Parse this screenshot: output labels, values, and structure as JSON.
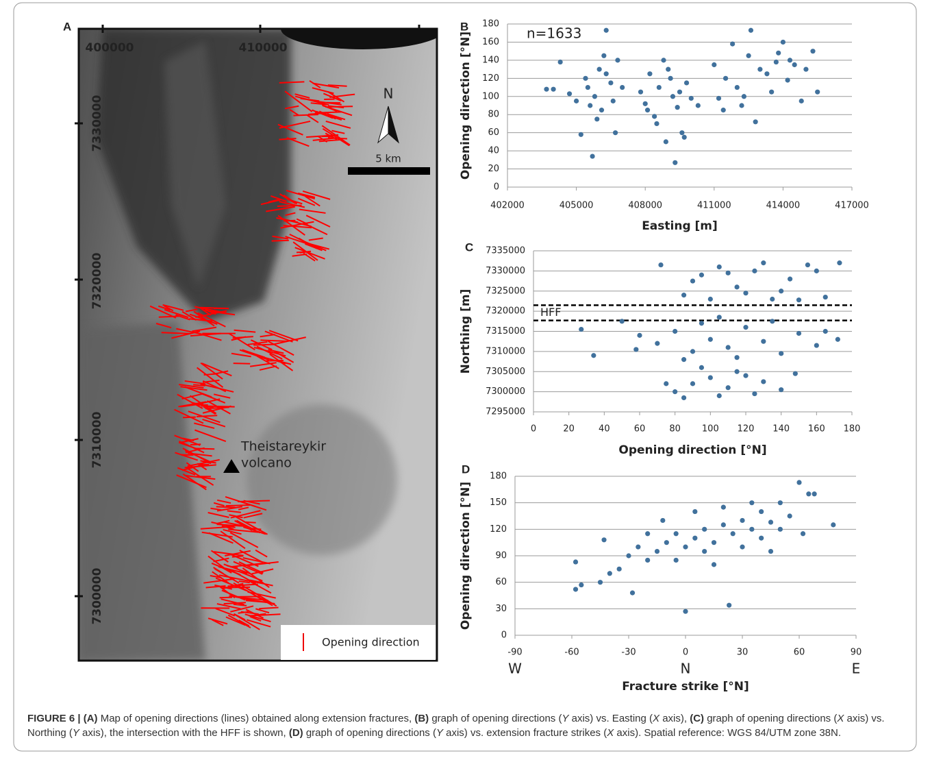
{
  "map": {
    "label": "A",
    "easting_labels": [
      400000,
      410000
    ],
    "northing_labels": [
      7330000,
      7320000,
      7310000,
      7300000
    ],
    "north": "N",
    "scale": "5 km",
    "volcano": [
      "Theistareykir",
      "volcano"
    ],
    "legend": "Opening direction"
  },
  "chart_data": [
    {
      "type": "scatter",
      "panel": "B",
      "annotation": "n=1633",
      "x_label": "Easting [m]",
      "y_label": "Opening direction [°N]",
      "xlim": [
        402000,
        417000
      ],
      "xticks": [
        402000,
        405000,
        408000,
        411000,
        414000,
        417000
      ],
      "ylim": [
        0,
        180
      ],
      "yticks": [
        0,
        20,
        40,
        60,
        80,
        100,
        120,
        140,
        160,
        180
      ],
      "grid": true,
      "color": "#41719c",
      "x": [
        403700,
        404000,
        404300,
        404700,
        405000,
        405200,
        405400,
        405500,
        405700,
        405800,
        406000,
        406100,
        406300,
        406300,
        406500,
        406600,
        406800,
        407000,
        406200,
        405900,
        406700,
        405600,
        407800,
        408000,
        408200,
        408400,
        408600,
        408800,
        409000,
        409200,
        409400,
        409600,
        409800,
        410000,
        408500,
        409300,
        408900,
        409100,
        408100,
        409500,
        411000,
        411200,
        411500,
        411800,
        412000,
        412200,
        412500,
        412600,
        412800,
        413000,
        413300,
        413500,
        413800,
        414000,
        414200,
        414500,
        414800,
        415000,
        415300,
        415500,
        412300,
        413700,
        411400,
        414300,
        410300,
        409700
      ],
      "values": [
        108,
        108,
        138,
        103,
        95,
        58,
        120,
        110,
        34,
        100,
        130,
        85,
        173,
        125,
        115,
        95,
        140,
        110,
        145,
        75,
        60,
        90,
        105,
        92,
        125,
        78,
        110,
        140,
        130,
        100,
        88,
        60,
        115,
        98,
        70,
        27,
        50,
        120,
        85,
        105,
        135,
        98,
        120,
        158,
        110,
        90,
        145,
        173,
        72,
        130,
        125,
        105,
        148,
        160,
        118,
        135,
        95,
        130,
        150,
        105,
        100,
        138,
        85,
        140,
        90,
        55
      ]
    },
    {
      "type": "scatter",
      "panel": "C",
      "x_label": "Opening direction [°N]",
      "y_label": "Northing [m]",
      "xlim": [
        0,
        180
      ],
      "xticks": [
        0,
        20,
        40,
        60,
        80,
        100,
        120,
        140,
        160,
        180
      ],
      "ylim": [
        7295000,
        7335000
      ],
      "yticks": [
        7295000,
        7300000,
        7305000,
        7310000,
        7315000,
        7320000,
        7325000,
        7330000,
        7335000
      ],
      "grid": true,
      "color": "#41719c",
      "hlines": [
        7321500,
        7317700
      ],
      "hline_label": "HFF",
      "x": [
        27,
        34,
        72,
        173,
        172,
        80,
        90,
        100,
        110,
        120,
        130,
        140,
        85,
        105,
        115,
        95,
        125,
        148,
        75,
        50,
        60,
        70,
        80,
        90,
        100,
        110,
        120,
        130,
        140,
        150,
        160,
        165,
        95,
        105,
        115,
        85,
        58,
        135,
        85,
        95,
        105,
        115,
        125,
        135,
        145,
        155,
        165,
        100,
        120,
        130,
        140,
        110,
        150,
        160,
        90
      ],
      "values": [
        7315500,
        7309000,
        7331500,
        7332000,
        7313000,
        7300000,
        7302000,
        7303500,
        7301000,
        7304000,
        7302500,
        7300500,
        7298500,
        7299000,
        7305000,
        7306000,
        7299500,
        7304500,
        7302000,
        7317500,
        7314000,
        7312000,
        7315000,
        7310000,
        7313000,
        7311000,
        7316000,
        7312500,
        7309500,
        7314500,
        7311500,
        7315000,
        7317000,
        7318500,
        7308500,
        7308000,
        7310500,
        7317500,
        7324000,
        7329000,
        7331000,
        7326000,
        7330000,
        7323000,
        7328000,
        7331500,
        7323500,
        7323000,
        7324500,
        7332000,
        7325000,
        7329500,
        7322800,
        7330000,
        7327500
      ]
    },
    {
      "type": "scatter",
      "panel": "D",
      "x_label": "Fracture strike [°N]",
      "y_label": "Opening direction [°N]",
      "xlim": [
        -90,
        90
      ],
      "xticks": [
        -90,
        -60,
        -30,
        0,
        30,
        60,
        90
      ],
      "ylim": [
        0,
        180
      ],
      "yticks": [
        0,
        30,
        60,
        90,
        120,
        150,
        180
      ],
      "grid": true,
      "color": "#41719c",
      "direction_labels": [
        {
          "value": -90,
          "label": "W"
        },
        {
          "value": 0,
          "label": "N"
        },
        {
          "value": 90,
          "label": "E"
        }
      ],
      "x": [
        -58,
        -58,
        -55,
        -43,
        0,
        23,
        78,
        60,
        -45,
        -40,
        -35,
        -30,
        -28,
        -25,
        -20,
        -15,
        -10,
        -5,
        0,
        5,
        10,
        15,
        20,
        25,
        30,
        35,
        40,
        45,
        50,
        55,
        65,
        68,
        -12,
        -5,
        10,
        20,
        30,
        40,
        50,
        -20,
        5,
        15,
        35,
        45,
        62
      ],
      "values": [
        83,
        52,
        57,
        108,
        27,
        34,
        125,
        173,
        60,
        70,
        75,
        90,
        48,
        100,
        85,
        95,
        105,
        115,
        100,
        110,
        120,
        105,
        125,
        115,
        130,
        120,
        140,
        128,
        150,
        135,
        160,
        160,
        130,
        85,
        95,
        145,
        100,
        110,
        120,
        115,
        140,
        80,
        150,
        95,
        115
      ]
    }
  ],
  "caption": [
    "FIGURE 6 | (A)",
    " Map of opening directions (lines) obtained along extension fractures, ",
    "(B)",
    " graph of opening directions (",
    "Y",
    " axis) vs. Easting (",
    "X",
    " axis), ",
    "(C)",
    " graph of opening directions (",
    "X",
    " axis) vs. Northing (",
    "Y",
    " axis), the intersection with the HFF is shown, ",
    "(D)",
    " graph of opening directions (",
    "Y",
    " axis) vs. extension fracture strikes (",
    "X",
    " axis). Spatial reference: WGS 84/UTM zone 38N."
  ]
}
